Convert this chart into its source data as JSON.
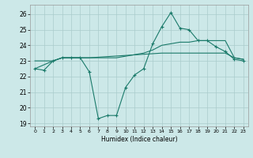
{
  "title": "",
  "xlabel": "Humidex (Indice chaleur)",
  "bg_color": "#cce8e8",
  "grid_color": "#aacccc",
  "line_color": "#1a7a6a",
  "xlim": [
    -0.5,
    23.5
  ],
  "ylim": [
    18.8,
    26.6
  ],
  "yticks": [
    19,
    20,
    21,
    22,
    23,
    24,
    25,
    26
  ],
  "xticks": [
    0,
    1,
    2,
    3,
    4,
    5,
    6,
    7,
    8,
    9,
    10,
    11,
    12,
    13,
    14,
    15,
    16,
    17,
    18,
    19,
    20,
    21,
    22,
    23
  ],
  "line1_x": [
    0,
    1,
    2,
    3,
    4,
    5,
    6,
    7,
    8,
    9,
    10,
    11,
    12,
    13,
    14,
    15,
    16,
    17,
    18,
    19,
    20,
    21,
    22,
    23
  ],
  "line1_y": [
    22.5,
    22.4,
    23.0,
    23.2,
    23.2,
    23.2,
    22.3,
    19.3,
    19.5,
    19.5,
    21.3,
    22.1,
    22.5,
    24.1,
    25.2,
    26.1,
    25.1,
    25.0,
    24.3,
    24.3,
    23.9,
    23.6,
    23.1,
    23.0
  ],
  "line2_x": [
    0,
    2,
    3,
    4,
    5,
    6,
    14,
    15,
    16,
    17,
    18,
    19,
    20,
    21,
    22,
    23
  ],
  "line2_y": [
    23.0,
    23.0,
    23.2,
    23.2,
    23.2,
    23.2,
    23.5,
    23.5,
    23.5,
    23.5,
    23.5,
    23.5,
    23.5,
    23.5,
    23.2,
    23.1
  ],
  "line3_x": [
    0,
    2,
    3,
    4,
    5,
    6,
    7,
    8,
    9,
    10,
    11,
    12,
    13,
    14,
    15,
    16,
    17,
    18,
    19,
    20,
    21,
    22,
    23
  ],
  "line3_y": [
    22.5,
    23.0,
    23.2,
    23.2,
    23.2,
    23.2,
    23.2,
    23.2,
    23.2,
    23.3,
    23.4,
    23.5,
    23.7,
    24.0,
    24.1,
    24.2,
    24.2,
    24.3,
    24.3,
    24.3,
    24.3,
    23.2,
    23.1
  ]
}
